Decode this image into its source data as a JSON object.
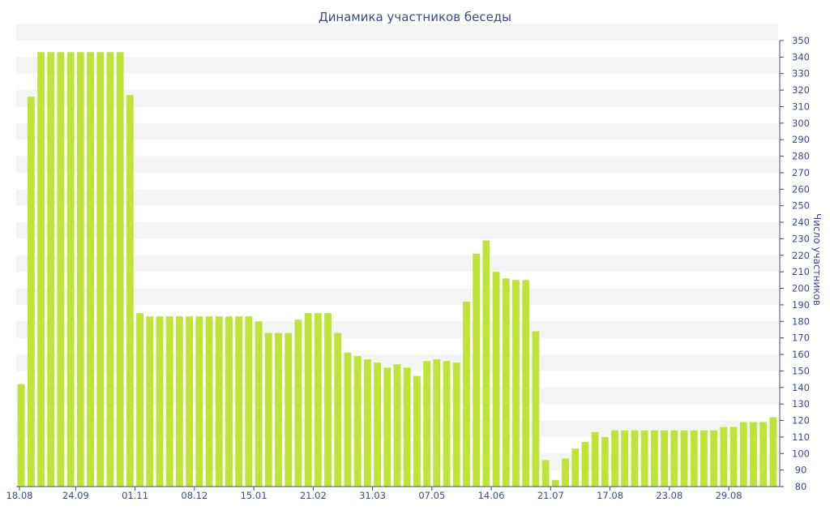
{
  "chart_data": {
    "type": "bar",
    "title": "Динамика участников беседы",
    "ylabel": "Число участников",
    "xlabel": "",
    "ylim": [
      80,
      350
    ],
    "yticks": [
      80,
      90,
      100,
      110,
      120,
      130,
      140,
      150,
      160,
      170,
      180,
      190,
      200,
      210,
      220,
      230,
      240,
      250,
      260,
      270,
      280,
      290,
      300,
      310,
      320,
      330,
      340,
      350
    ],
    "y_axis_side": "right",
    "grid": "alternating horizontal bands",
    "bar_color": "#bfe336",
    "band_color": "#f4f4f4",
    "label_color": "#3a4a8a",
    "tick_labels": [
      {
        "index": 0,
        "label": "18.08"
      },
      {
        "index": 6,
        "label": "24.09"
      },
      {
        "index": 12,
        "label": "01.11"
      },
      {
        "index": 18,
        "label": "08.12"
      },
      {
        "index": 24,
        "label": "15.01"
      },
      {
        "index": 30,
        "label": "21.02"
      },
      {
        "index": 36,
        "label": "31.03"
      },
      {
        "index": 42,
        "label": "07.05"
      },
      {
        "index": 48,
        "label": "14.06"
      },
      {
        "index": 54,
        "label": "21.07"
      },
      {
        "index": 60,
        "label": "17.08"
      },
      {
        "index": 66,
        "label": "23.08"
      },
      {
        "index": 72,
        "label": "29.08"
      }
    ],
    "values": [
      142,
      316,
      343,
      343,
      343,
      343,
      343,
      343,
      343,
      343,
      343,
      317,
      185,
      183,
      183,
      183,
      183,
      183,
      183,
      183,
      183,
      183,
      183,
      183,
      180,
      173,
      173,
      173,
      181,
      185,
      185,
      185,
      173,
      161,
      159,
      157,
      155,
      152,
      154,
      152,
      147,
      156,
      157,
      156,
      155,
      192,
      221,
      229,
      210,
      206,
      205,
      205,
      174,
      96,
      84,
      97,
      103,
      107,
      113,
      110,
      114,
      114,
      114,
      114,
      114,
      114,
      114,
      114,
      114,
      114,
      114,
      116,
      116,
      119,
      119,
      119,
      122
    ]
  }
}
